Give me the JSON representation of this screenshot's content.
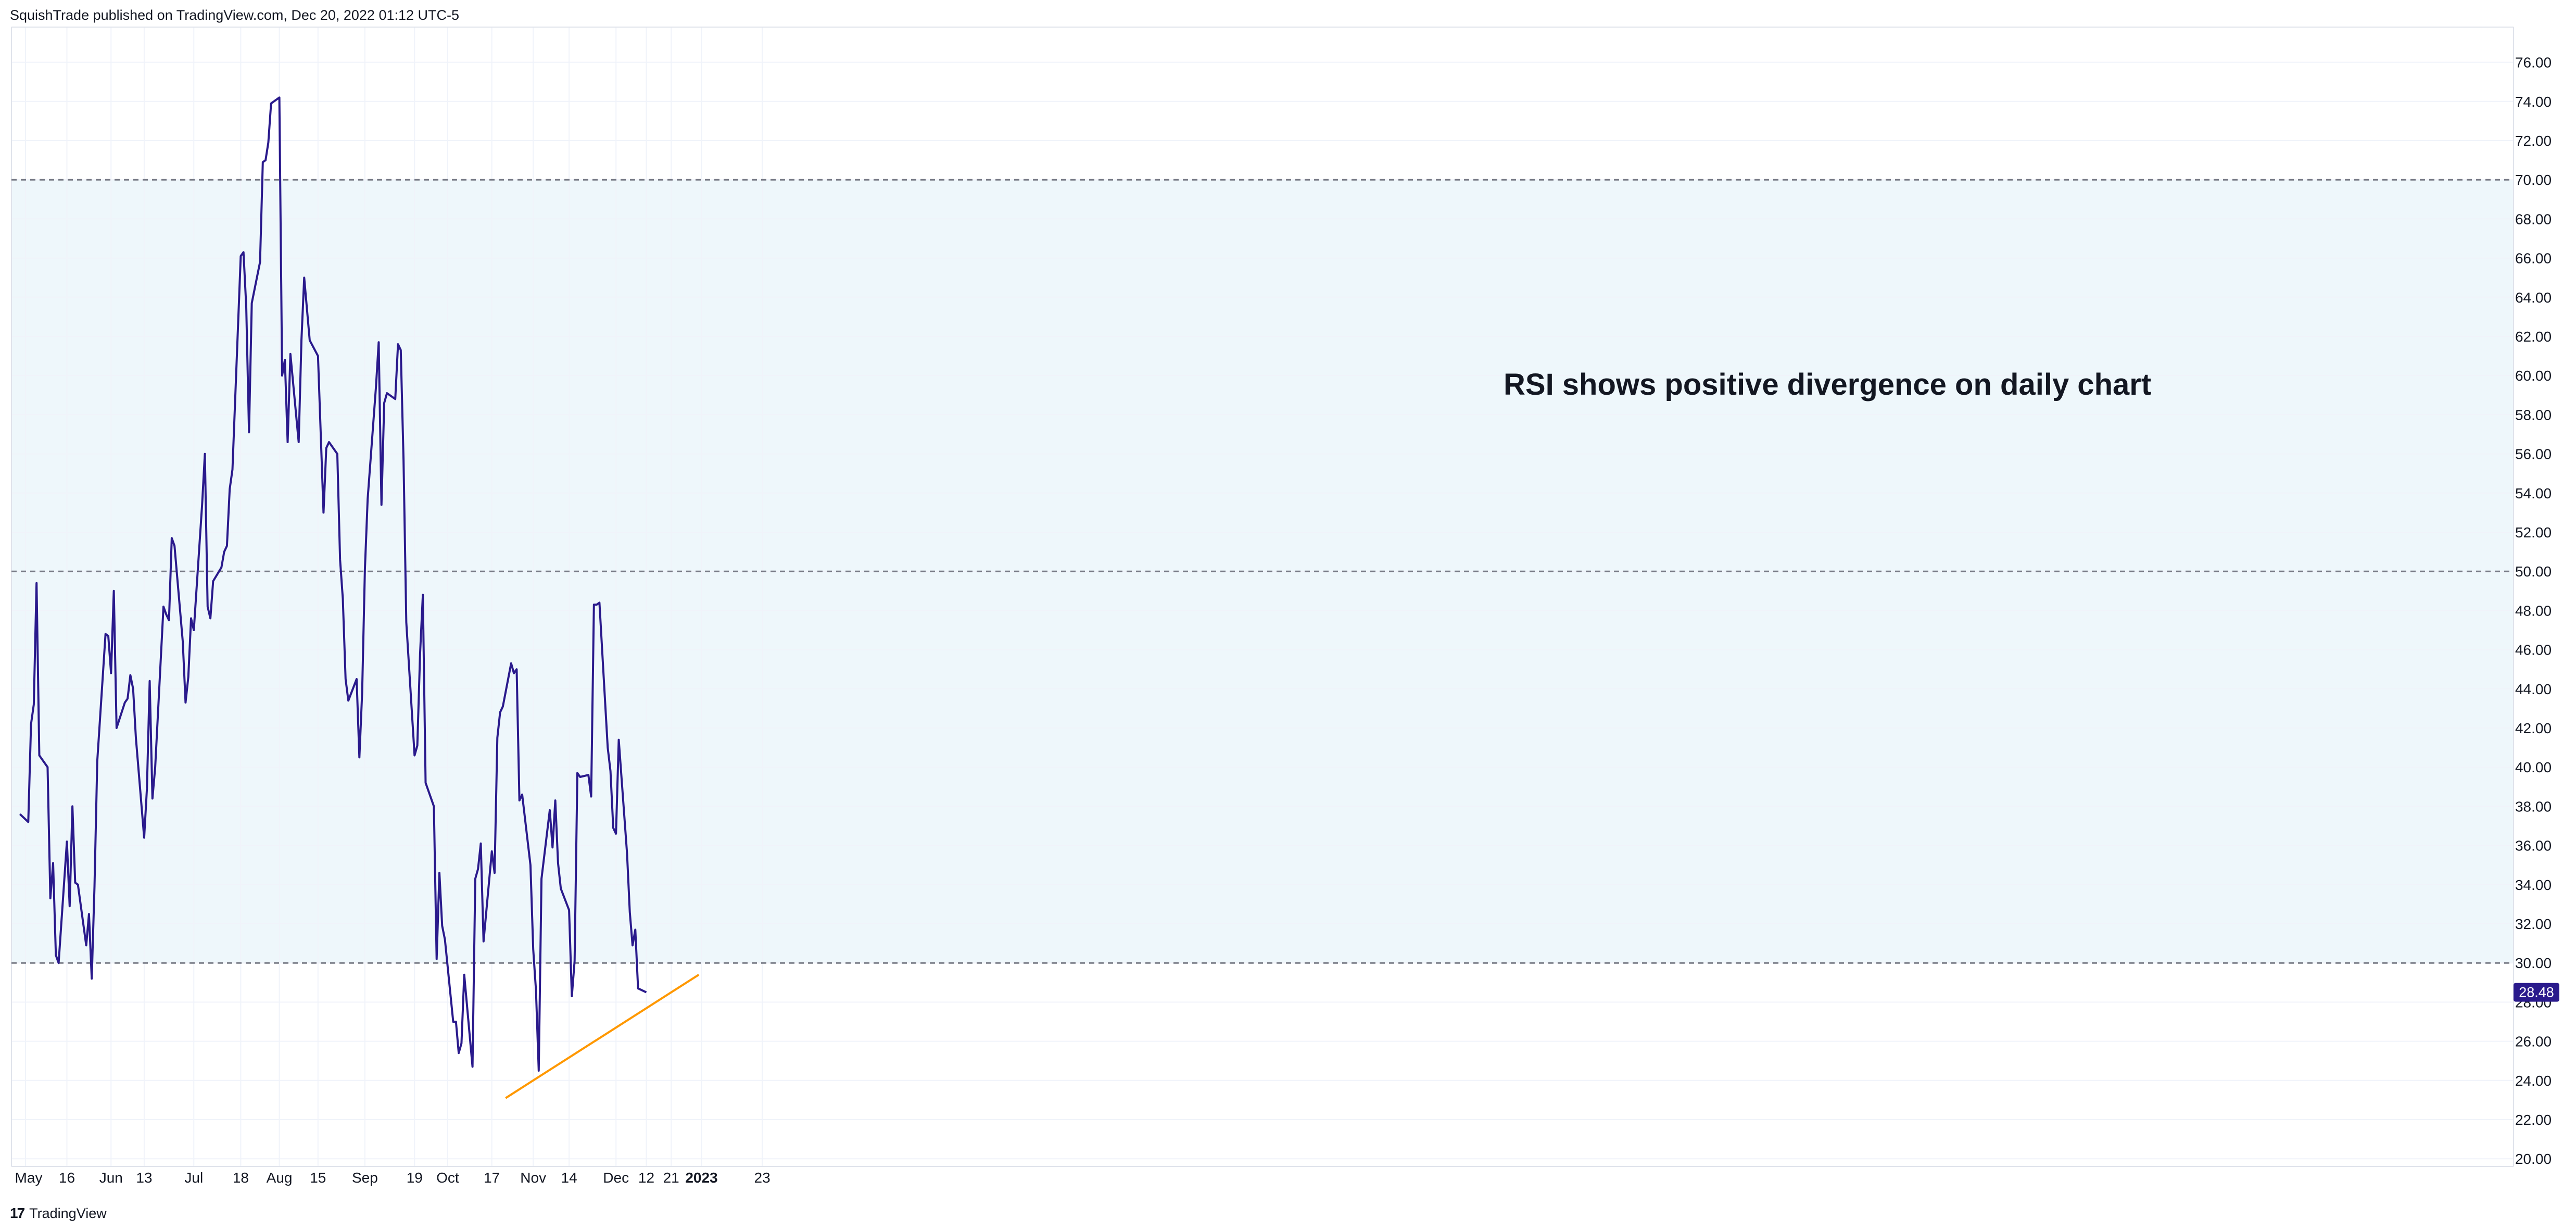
{
  "header": {
    "published": "SquishTrade published on TradingView.com, Dec 20, 2022 01:12 UTC-5"
  },
  "footer": {
    "logo": "17",
    "brand": "TradingView"
  },
  "colors": {
    "rsi_line": "#2a1a8c",
    "trendline": "#ff9800",
    "band_fill": "#eef7fb",
    "badge": "#2a1a8c",
    "guide": "#787b86"
  },
  "chart_data": {
    "type": "line",
    "title": "",
    "annotation": "RSI shows positive divergence on daily chart",
    "ylim": [
      20,
      77
    ],
    "y_ticks": [
      "76.00",
      "74.00",
      "72.00",
      "70.00",
      "68.00",
      "66.00",
      "64.00",
      "62.00",
      "60.00",
      "58.00",
      "56.00",
      "54.00",
      "52.00",
      "50.00",
      "48.00",
      "46.00",
      "44.00",
      "42.00",
      "40.00",
      "38.00",
      "36.00",
      "34.00",
      "32.00",
      "30.00",
      "28.00",
      "26.00",
      "24.00",
      "22.00",
      "20.00"
    ],
    "x_ticks": [
      {
        "label": "May",
        "date": "2022-05-01"
      },
      {
        "label": "16",
        "date": "2022-05-16"
      },
      {
        "label": "Jun",
        "date": "2022-06-01"
      },
      {
        "label": "13",
        "date": "2022-06-13"
      },
      {
        "label": "Jul",
        "date": "2022-07-01"
      },
      {
        "label": "18",
        "date": "2022-07-18"
      },
      {
        "label": "Aug",
        "date": "2022-08-01"
      },
      {
        "label": "15",
        "date": "2022-08-15"
      },
      {
        "label": "Sep",
        "date": "2022-09-01"
      },
      {
        "label": "19",
        "date": "2022-09-19"
      },
      {
        "label": "Oct",
        "date": "2022-10-01"
      },
      {
        "label": "17",
        "date": "2022-10-17"
      },
      {
        "label": "Nov",
        "date": "2022-11-01"
      },
      {
        "label": "14",
        "date": "2022-11-14"
      },
      {
        "label": "Dec",
        "date": "2022-12-01"
      },
      {
        "label": "12",
        "date": "2022-12-12"
      },
      {
        "label": "21",
        "date": "2022-12-21"
      },
      {
        "label": "2023",
        "date": "2023-01-01",
        "bold": true
      },
      {
        "label": "23",
        "date": "2023-01-23"
      }
    ],
    "levels": [
      70,
      50,
      30
    ],
    "band": [
      30,
      70
    ],
    "last_value_label": "28.48",
    "series": [
      {
        "values": [
          [
            "2022-04-29",
            37.6
          ],
          [
            "2022-05-02",
            37.2
          ],
          [
            "2022-05-03",
            42.2
          ],
          [
            "2022-05-04",
            43.2
          ],
          [
            "2022-05-05",
            49.4
          ],
          [
            "2022-05-06",
            40.6
          ],
          [
            "2022-05-09",
            40.0
          ],
          [
            "2022-05-10",
            33.3
          ],
          [
            "2022-05-11",
            35.1
          ],
          [
            "2022-05-12",
            30.4
          ],
          [
            "2022-05-13",
            30.0
          ],
          [
            "2022-05-16",
            36.2
          ],
          [
            "2022-05-17",
            32.9
          ],
          [
            "2022-05-18",
            38.0
          ],
          [
            "2022-05-19",
            34.1
          ],
          [
            "2022-05-20",
            34.0
          ],
          [
            "2022-05-23",
            30.9
          ],
          [
            "2022-05-24",
            32.5
          ],
          [
            "2022-05-25",
            29.2
          ],
          [
            "2022-05-26",
            33.9
          ],
          [
            "2022-05-27",
            40.3
          ],
          [
            "2022-05-30",
            46.8
          ],
          [
            "2022-05-31",
            46.7
          ],
          [
            "2022-06-01",
            44.8
          ],
          [
            "2022-06-02",
            49.0
          ],
          [
            "2022-06-03",
            42.0
          ],
          [
            "2022-06-06",
            43.3
          ],
          [
            "2022-06-07",
            43.5
          ],
          [
            "2022-06-08",
            44.7
          ],
          [
            "2022-06-09",
            44.0
          ],
          [
            "2022-06-10",
            41.5
          ],
          [
            "2022-06-13",
            36.4
          ],
          [
            "2022-06-14",
            38.9
          ],
          [
            "2022-06-15",
            44.4
          ],
          [
            "2022-06-16",
            38.4
          ],
          [
            "2022-06-17",
            40.0
          ],
          [
            "2022-06-20",
            48.2
          ],
          [
            "2022-06-21",
            47.8
          ],
          [
            "2022-06-22",
            47.5
          ],
          [
            "2022-06-23",
            51.7
          ],
          [
            "2022-06-24",
            51.3
          ],
          [
            "2022-06-27",
            46.4
          ],
          [
            "2022-06-28",
            43.3
          ],
          [
            "2022-06-29",
            44.6
          ],
          [
            "2022-06-30",
            47.6
          ],
          [
            "2022-07-01",
            47.0
          ],
          [
            "2022-07-04",
            53.4
          ],
          [
            "2022-07-05",
            56.0
          ],
          [
            "2022-07-06",
            48.2
          ],
          [
            "2022-07-07",
            47.6
          ],
          [
            "2022-07-08",
            49.5
          ],
          [
            "2022-07-11",
            50.2
          ],
          [
            "2022-07-12",
            51.0
          ],
          [
            "2022-07-13",
            51.3
          ],
          [
            "2022-07-14",
            54.2
          ],
          [
            "2022-07-15",
            55.2
          ],
          [
            "2022-07-18",
            66.1
          ],
          [
            "2022-07-19",
            66.3
          ],
          [
            "2022-07-20",
            63.5
          ],
          [
            "2022-07-21",
            57.1
          ],
          [
            "2022-07-22",
            63.7
          ],
          [
            "2022-07-25",
            65.8
          ],
          [
            "2022-07-26",
            70.9
          ],
          [
            "2022-07-27",
            71.0
          ],
          [
            "2022-07-28",
            71.9
          ],
          [
            "2022-07-29",
            73.9
          ],
          [
            "2022-08-01",
            74.2
          ],
          [
            "2022-08-02",
            60.0
          ],
          [
            "2022-08-03",
            60.8
          ],
          [
            "2022-08-04",
            56.6
          ],
          [
            "2022-08-05",
            61.1
          ],
          [
            "2022-08-08",
            56.6
          ],
          [
            "2022-08-09",
            61.8
          ],
          [
            "2022-08-10",
            65.0
          ],
          [
            "2022-08-11",
            63.4
          ],
          [
            "2022-08-12",
            61.8
          ],
          [
            "2022-08-15",
            61.0
          ],
          [
            "2022-08-16",
            57.0
          ],
          [
            "2022-08-17",
            53.0
          ],
          [
            "2022-08-18",
            56.3
          ],
          [
            "2022-08-19",
            56.6
          ],
          [
            "2022-08-22",
            56.0
          ],
          [
            "2022-08-23",
            50.6
          ],
          [
            "2022-08-24",
            48.6
          ],
          [
            "2022-08-25",
            44.5
          ],
          [
            "2022-08-26",
            43.4
          ],
          [
            "2022-08-29",
            44.5
          ],
          [
            "2022-08-30",
            40.5
          ],
          [
            "2022-08-31",
            43.8
          ],
          [
            "2022-09-01",
            50.1
          ],
          [
            "2022-09-02",
            53.7
          ],
          [
            "2022-09-05",
            59.4
          ],
          [
            "2022-09-06",
            61.7
          ],
          [
            "2022-09-07",
            53.4
          ],
          [
            "2022-09-08",
            58.6
          ],
          [
            "2022-09-09",
            59.1
          ],
          [
            "2022-09-12",
            58.8
          ],
          [
            "2022-09-13",
            61.6
          ],
          [
            "2022-09-14",
            61.3
          ],
          [
            "2022-09-15",
            55.7
          ],
          [
            "2022-09-16",
            47.4
          ],
          [
            "2022-09-19",
            40.6
          ],
          [
            "2022-09-20",
            41.1
          ],
          [
            "2022-09-21",
            45.8
          ],
          [
            "2022-09-22",
            48.8
          ],
          [
            "2022-09-23",
            39.2
          ],
          [
            "2022-09-26",
            38.0
          ],
          [
            "2022-09-27",
            30.2
          ],
          [
            "2022-09-28",
            34.6
          ],
          [
            "2022-09-29",
            31.9
          ],
          [
            "2022-09-30",
            31.2
          ],
          [
            "2022-10-03",
            27.0
          ],
          [
            "2022-10-04",
            27.0
          ],
          [
            "2022-10-05",
            25.4
          ],
          [
            "2022-10-06",
            25.9
          ],
          [
            "2022-10-07",
            29.4
          ],
          [
            "2022-10-10",
            24.7
          ],
          [
            "2022-10-11",
            34.3
          ],
          [
            "2022-10-12",
            34.8
          ],
          [
            "2022-10-13",
            36.1
          ],
          [
            "2022-10-14",
            31.1
          ],
          [
            "2022-10-17",
            35.7
          ],
          [
            "2022-10-18",
            34.6
          ],
          [
            "2022-10-19",
            41.5
          ],
          [
            "2022-10-20",
            42.8
          ],
          [
            "2022-10-21",
            43.1
          ],
          [
            "2022-10-24",
            45.3
          ],
          [
            "2022-10-25",
            44.8
          ],
          [
            "2022-10-26",
            45.0
          ],
          [
            "2022-10-27",
            38.3
          ],
          [
            "2022-10-28",
            38.6
          ],
          [
            "2022-10-31",
            35.0
          ],
          [
            "2022-11-01",
            30.7
          ],
          [
            "2022-11-02",
            28.6
          ],
          [
            "2022-11-03",
            24.5
          ],
          [
            "2022-11-04",
            34.3
          ],
          [
            "2022-11-07",
            37.8
          ],
          [
            "2022-11-08",
            35.9
          ],
          [
            "2022-11-09",
            38.3
          ],
          [
            "2022-11-10",
            35.1
          ],
          [
            "2022-11-11",
            33.8
          ],
          [
            "2022-11-14",
            32.7
          ],
          [
            "2022-11-15",
            28.3
          ],
          [
            "2022-11-16",
            30.1
          ],
          [
            "2022-11-17",
            39.7
          ],
          [
            "2022-11-18",
            39.5
          ],
          [
            "2022-11-21",
            39.6
          ],
          [
            "2022-11-22",
            38.5
          ],
          [
            "2022-11-23",
            48.3
          ],
          [
            "2022-11-24",
            48.3
          ],
          [
            "2022-11-25",
            48.4
          ],
          [
            "2022-11-28",
            41.0
          ],
          [
            "2022-11-29",
            39.8
          ],
          [
            "2022-11-30",
            36.9
          ],
          [
            "2022-12-01",
            36.6
          ],
          [
            "2022-12-02",
            41.4
          ],
          [
            "2022-12-05",
            35.6
          ],
          [
            "2022-12-06",
            32.6
          ],
          [
            "2022-12-07",
            30.9
          ],
          [
            "2022-12-08",
            31.7
          ],
          [
            "2022-12-09",
            28.7
          ],
          [
            "2022-12-12",
            28.5
          ]
        ]
      }
    ],
    "trendline": {
      "start": [
        "2022-10-22",
        23.1
      ],
      "end": [
        "2022-12-31",
        29.4
      ]
    }
  }
}
